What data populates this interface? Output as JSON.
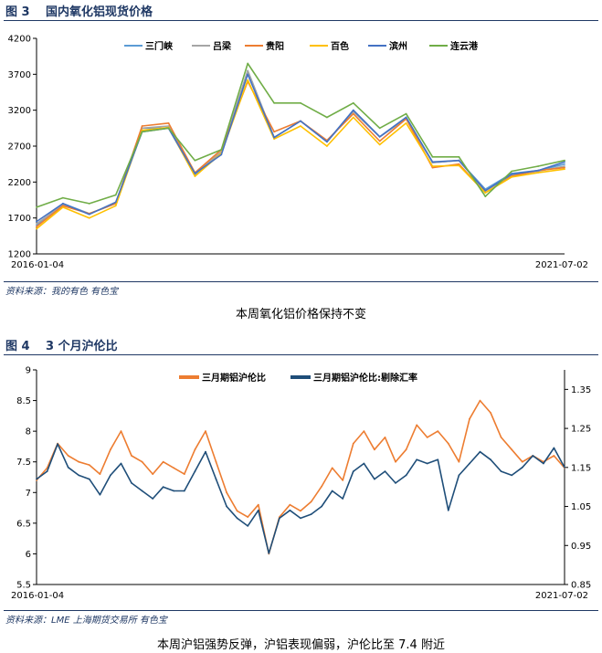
{
  "figure1": {
    "number": "图 3",
    "title": "国内氧化铝现货价格",
    "source": "资料来源：我的有色   有色宝",
    "caption": "本周氧化铝价格保持不变"
  },
  "figure2": {
    "number": "图 4",
    "title": "3 个月沪伦比",
    "source": "资料来源：LME   上海期货交易所   有色宝",
    "caption": "本周沪铝强势反弹，沪铝表现偏弱，沪伦比至 7.4 附近"
  },
  "chart_data": [
    {
      "type": "line",
      "x_start_label": "2016-01-04",
      "x_end_label": "2021-07-02",
      "ylim": [
        1200,
        4200
      ],
      "yticks": [
        1200,
        1700,
        2200,
        2700,
        3200,
        3700,
        4200
      ],
      "grid": false,
      "legend_position": "top",
      "x": [
        0,
        5,
        10,
        15,
        20,
        25,
        30,
        35,
        40,
        45,
        50,
        55,
        60,
        65,
        70,
        75,
        80,
        85,
        90,
        95,
        100
      ],
      "series": [
        {
          "name": "三门峡",
          "color": "#5b9bd5",
          "values": [
            1600,
            1900,
            1760,
            1900,
            2950,
            2950,
            2300,
            2600,
            3750,
            2820,
            3050,
            2760,
            3200,
            2830,
            3100,
            2470,
            2500,
            2100,
            2320,
            2360,
            2450
          ]
        },
        {
          "name": "吕梁",
          "color": "#a5a5a5",
          "values": [
            1620,
            1880,
            1760,
            1900,
            2950,
            2980,
            2320,
            2620,
            3750,
            2820,
            3050,
            2760,
            3180,
            2830,
            3080,
            2470,
            2500,
            2080,
            2300,
            2350,
            2420
          ]
        },
        {
          "name": "贵阳",
          "color": "#ed7d31",
          "values": [
            1580,
            1870,
            1760,
            1900,
            2980,
            3020,
            2330,
            2650,
            3600,
            2900,
            3050,
            2780,
            3150,
            2770,
            3080,
            2400,
            2450,
            2050,
            2280,
            2360,
            2400
          ]
        },
        {
          "name": "百色",
          "color": "#ffc000",
          "values": [
            1550,
            1850,
            1700,
            1870,
            2920,
            2960,
            2280,
            2600,
            3620,
            2800,
            2980,
            2700,
            3100,
            2720,
            3020,
            2420,
            2430,
            2050,
            2270,
            2330,
            2380
          ]
        },
        {
          "name": "滨州",
          "color": "#4472c4",
          "values": [
            1650,
            1900,
            1750,
            1920,
            2900,
            2950,
            2320,
            2580,
            3700,
            2820,
            3050,
            2760,
            3200,
            2830,
            3100,
            2480,
            2500,
            2080,
            2310,
            2360,
            2480
          ]
        },
        {
          "name": "连云港",
          "color": "#70ad47",
          "values": [
            1850,
            1980,
            1900,
            2020,
            2900,
            2950,
            2500,
            2650,
            3850,
            3300,
            3300,
            3100,
            3300,
            2950,
            3150,
            2550,
            2550,
            2000,
            2350,
            2420,
            2500
          ]
        }
      ]
    },
    {
      "type": "line",
      "x_start_label": "2016-01-04",
      "x_end_label": "2021-07-02",
      "ylim": [
        5.5,
        9
      ],
      "yticks": [
        5.5,
        6,
        6.5,
        7,
        7.5,
        8,
        8.5,
        9
      ],
      "y2lim": [
        0.85,
        1.4
      ],
      "y2ticks": [
        0.85,
        0.95,
        1.05,
        1.15,
        1.25,
        1.35
      ],
      "grid": false,
      "legend_position": "top",
      "x": [
        0,
        2,
        4,
        6,
        8,
        10,
        12,
        14,
        16,
        18,
        20,
        22,
        24,
        26,
        28,
        30,
        32,
        34,
        36,
        38,
        40,
        42,
        44,
        46,
        48,
        50,
        52,
        54,
        56,
        58,
        60,
        62,
        64,
        66,
        68,
        70,
        72,
        74,
        76,
        78,
        80,
        82,
        84,
        86,
        88,
        90,
        92,
        94,
        96,
        98,
        100
      ],
      "series": [
        {
          "name": "三月期铝沪伦比",
          "color": "#ed7d31",
          "axis": "left",
          "values": [
            7.2,
            7.4,
            7.8,
            7.6,
            7.5,
            7.45,
            7.3,
            7.7,
            8.0,
            7.6,
            7.5,
            7.3,
            7.5,
            7.4,
            7.3,
            7.7,
            8.0,
            7.5,
            7.0,
            6.7,
            6.6,
            6.8,
            6.0,
            6.6,
            6.8,
            6.7,
            6.85,
            7.1,
            7.4,
            7.2,
            7.8,
            8.0,
            7.7,
            7.9,
            7.5,
            7.7,
            8.1,
            7.9,
            8.0,
            7.8,
            7.5,
            8.2,
            8.5,
            8.3,
            7.9,
            7.7,
            7.5,
            7.6,
            7.5,
            7.6,
            7.4
          ]
        },
        {
          "name": "三月期铝沪伦比:剔除汇率",
          "color": "#1f4e79",
          "axis": "right",
          "values": [
            1.12,
            1.14,
            1.21,
            1.15,
            1.13,
            1.12,
            1.08,
            1.13,
            1.16,
            1.11,
            1.09,
            1.07,
            1.1,
            1.09,
            1.09,
            1.14,
            1.19,
            1.12,
            1.05,
            1.02,
            1.0,
            1.04,
            0.93,
            1.02,
            1.04,
            1.02,
            1.03,
            1.05,
            1.09,
            1.07,
            1.14,
            1.16,
            1.12,
            1.14,
            1.11,
            1.13,
            1.17,
            1.16,
            1.17,
            1.04,
            1.13,
            1.16,
            1.19,
            1.17,
            1.14,
            1.13,
            1.15,
            1.18,
            1.16,
            1.2,
            1.15
          ]
        }
      ]
    }
  ]
}
